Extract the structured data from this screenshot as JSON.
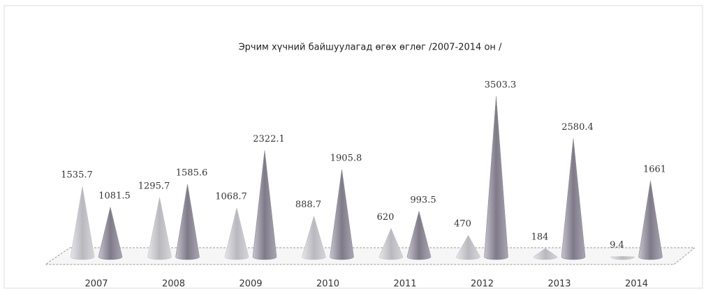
{
  "chart_data": {
    "type": "cone",
    "title": "Эрчим хүчний байшуулагад өгөх өглөг /2007-2014 он /",
    "categories": [
      "2007",
      "2008",
      "2009",
      "2010",
      "2011",
      "2012",
      "2013",
      "2014"
    ],
    "series": [
      {
        "color": "#c4c4c8",
        "values": [
          1535.7,
          1295.7,
          1068.7,
          888.7,
          620,
          470,
          184,
          9.4
        ]
      },
      {
        "color": "#8e8a98",
        "values": [
          1081.5,
          1585.6,
          2322.1,
          1905.8,
          993.5,
          3503.3,
          2580.4,
          1661
        ]
      }
    ]
  }
}
